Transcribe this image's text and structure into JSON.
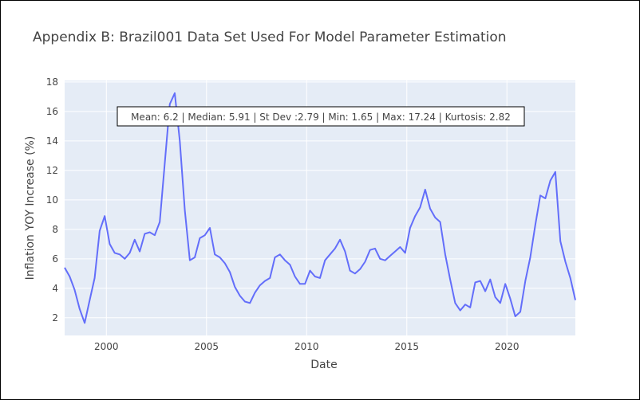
{
  "chart_data": {
    "type": "line",
    "title": "Appendix B: Brazil001 Data Set Used For Model Parameter Estimation",
    "xlabel": "Date",
    "ylabel": "Inflation YOY Increase (%)",
    "xlim": [
      "1997-12",
      "2023-06"
    ],
    "ylim": [
      0.8,
      18.1
    ],
    "x_ticks": [
      "2000",
      "2005",
      "2010",
      "2015",
      "2020"
    ],
    "y_ticks": [
      2,
      4,
      6,
      8,
      10,
      12,
      14,
      16,
      18
    ],
    "grid": true,
    "line_color": "#636efa",
    "annotation": "Mean: 6.2 | Median: 5.91 | St Dev :2.79 | Min: 1.65 | Max: 17.24 | Kurtosis: 2.82",
    "series": [
      {
        "x": [
          "1997-12",
          "1998-03",
          "1998-06",
          "1998-09",
          "1998-12",
          "1999-03",
          "1999-06",
          "1999-09",
          "1999-12",
          "2000-03",
          "2000-06",
          "2000-09",
          "2000-12",
          "2001-03",
          "2001-06",
          "2001-09",
          "2001-12",
          "2002-03",
          "2002-06",
          "2002-09",
          "2002-12",
          "2003-03",
          "2003-06",
          "2003-09",
          "2003-12",
          "2004-03",
          "2004-06",
          "2004-09",
          "2004-12",
          "2005-03",
          "2005-06",
          "2005-09",
          "2005-12",
          "2006-03",
          "2006-06",
          "2006-09",
          "2006-12",
          "2007-03",
          "2007-06",
          "2007-09",
          "2007-12",
          "2008-03",
          "2008-06",
          "2008-09",
          "2008-12",
          "2009-03",
          "2009-06",
          "2009-09",
          "2009-12",
          "2010-03",
          "2010-06",
          "2010-09",
          "2010-12",
          "2011-03",
          "2011-06",
          "2011-09",
          "2011-12",
          "2012-03",
          "2012-06",
          "2012-09",
          "2012-12",
          "2013-03",
          "2013-06",
          "2013-09",
          "2013-12",
          "2014-03",
          "2014-06",
          "2014-09",
          "2014-12",
          "2015-03",
          "2015-06",
          "2015-09",
          "2015-12",
          "2016-03",
          "2016-06",
          "2016-09",
          "2016-12",
          "2017-03",
          "2017-06",
          "2017-09",
          "2017-12",
          "2018-03",
          "2018-06",
          "2018-09",
          "2018-12",
          "2019-03",
          "2019-06",
          "2019-09",
          "2019-12",
          "2020-03",
          "2020-06",
          "2020-09",
          "2020-12",
          "2021-03",
          "2021-06",
          "2021-09",
          "2021-12",
          "2022-03",
          "2022-06",
          "2022-09",
          "2022-12",
          "2023-03",
          "2023-06"
        ],
        "values": [
          5.4,
          4.8,
          3.9,
          2.6,
          1.65,
          3.2,
          4.7,
          7.9,
          8.9,
          7.0,
          6.4,
          6.3,
          6.0,
          6.4,
          7.3,
          6.5,
          7.7,
          7.8,
          7.6,
          8.5,
          12.5,
          16.5,
          17.24,
          14.0,
          9.3,
          5.9,
          6.1,
          7.4,
          7.6,
          8.1,
          6.3,
          6.1,
          5.7,
          5.1,
          4.1,
          3.5,
          3.1,
          3.0,
          3.7,
          4.2,
          4.5,
          4.7,
          6.1,
          6.3,
          5.9,
          5.6,
          4.8,
          4.3,
          4.3,
          5.2,
          4.8,
          4.7,
          5.9,
          6.3,
          6.7,
          7.3,
          6.5,
          5.2,
          5.0,
          5.3,
          5.8,
          6.6,
          6.7,
          6.0,
          5.9,
          6.2,
          6.5,
          6.8,
          6.4,
          8.1,
          8.9,
          9.5,
          10.7,
          9.4,
          8.8,
          8.5,
          6.3,
          4.6,
          3.0,
          2.5,
          2.9,
          2.7,
          4.4,
          4.5,
          3.8,
          4.6,
          3.4,
          3.0,
          4.3,
          3.3,
          2.1,
          2.4,
          4.5,
          6.1,
          8.3,
          10.3,
          10.1,
          11.3,
          11.9,
          7.2,
          5.8,
          4.7,
          3.2
        ]
      }
    ]
  }
}
